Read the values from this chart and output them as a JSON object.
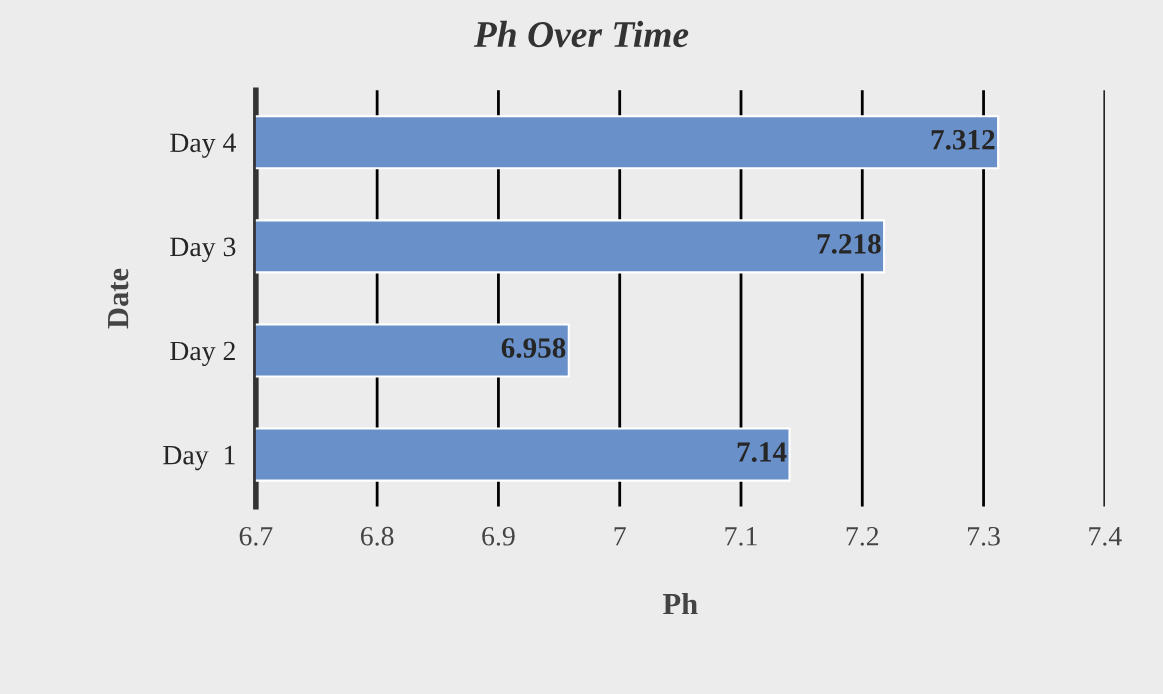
{
  "chart_data": {
    "type": "bar",
    "orientation": "horizontal",
    "title": "Ph Over Time",
    "xlabel": "Ph",
    "ylabel": "Date",
    "categories": [
      "Day 4",
      "Day 3",
      "Day 2",
      "Day  1"
    ],
    "values": [
      7.312,
      7.218,
      6.958,
      7.14
    ],
    "color": "#6990c8",
    "xlim": [
      6.7,
      7.4
    ],
    "xticks": [
      6.7,
      6.8,
      6.9,
      7,
      7.1,
      7.2,
      7.3,
      7.4
    ],
    "grid": "x",
    "data_labels": true
  }
}
